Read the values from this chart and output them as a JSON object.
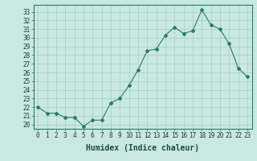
{
  "x": [
    0,
    1,
    2,
    3,
    4,
    5,
    6,
    7,
    8,
    9,
    10,
    11,
    12,
    13,
    14,
    15,
    16,
    17,
    18,
    19,
    20,
    21,
    22,
    23
  ],
  "y": [
    22.0,
    21.3,
    21.3,
    20.8,
    20.8,
    19.8,
    20.5,
    20.5,
    22.5,
    23.0,
    24.5,
    26.3,
    28.5,
    28.7,
    30.3,
    31.2,
    30.5,
    30.8,
    33.2,
    31.5,
    31.0,
    29.3,
    26.5,
    25.5
  ],
  "line_color": "#2a7a6a",
  "marker": "D",
  "marker_size": 2,
  "bg_color": "#c8e8e0",
  "grid_color": "#a8cfc8",
  "xlabel": "Humidex (Indice chaleur)",
  "xlabel_fontsize": 7,
  "ylabel_ticks": [
    20,
    21,
    22,
    23,
    24,
    25,
    26,
    27,
    28,
    29,
    30,
    31,
    32,
    33
  ],
  "xlim": [
    -0.5,
    23.5
  ],
  "ylim": [
    19.5,
    33.8
  ],
  "tick_fontsize": 5.5
}
